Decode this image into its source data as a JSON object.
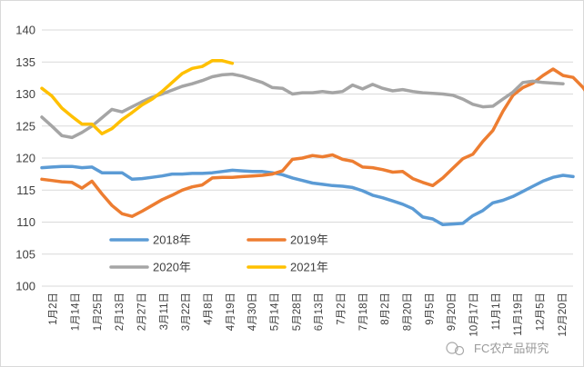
{
  "chart_data": {
    "type": "line",
    "title": "",
    "xlabel": "",
    "ylabel": "",
    "ylim": [
      100,
      140
    ],
    "yticks": [
      100,
      105,
      110,
      115,
      120,
      125,
      130,
      135,
      140
    ],
    "grid": "horizontal",
    "legend_placement": "bottom-left inside",
    "x_labels": [
      "1月2日",
      "1月14日",
      "1月25日",
      "2月13日",
      "2月27日",
      "3月11日",
      "3月22日",
      "4月8日",
      "4月19日",
      "4月30日",
      "5月14日",
      "5月28日",
      "6月13日",
      "7月2日",
      "7月18日",
      "8月2日",
      "8月20日",
      "9月5日",
      "9月20日",
      "10月17日",
      "11月1日",
      "11月19日",
      "12月5日",
      "12月20日"
    ],
    "series": [
      {
        "name": "2018年",
        "color": "#5B9BD5",
        "values": [
          118.5,
          118.6,
          118.7,
          118.7,
          118.5,
          118.6,
          117.7,
          117.7,
          117.7,
          116.7,
          116.8,
          117.0,
          117.2,
          117.5,
          117.5,
          117.6,
          117.6,
          117.7,
          117.9,
          118.1,
          118.0,
          117.9,
          117.9,
          117.7,
          117.4,
          116.9,
          116.5,
          116.1,
          115.9,
          115.7,
          115.6,
          115.4,
          114.9,
          114.2,
          113.8,
          113.3,
          112.8,
          112.1,
          110.8,
          110.5,
          109.6,
          109.7,
          109.8,
          111.0,
          111.8,
          113.0,
          113.4,
          114.0,
          114.8,
          115.6,
          116.4,
          117.0,
          117.3,
          117.1
        ]
      },
      {
        "name": "2019年",
        "color": "#ED7D31",
        "values": [
          116.7,
          116.5,
          116.3,
          116.2,
          115.3,
          116.4,
          114.4,
          112.6,
          111.3,
          110.9,
          111.7,
          112.6,
          113.5,
          114.2,
          115.0,
          115.5,
          115.8,
          116.9,
          117.0,
          117.0,
          117.1,
          117.2,
          117.3,
          117.5,
          118.0,
          119.8,
          120.0,
          120.4,
          120.2,
          120.5,
          119.8,
          119.5,
          118.6,
          118.5,
          118.2,
          117.8,
          117.9,
          116.8,
          116.2,
          115.7,
          116.9,
          118.4,
          119.9,
          120.6,
          122.6,
          124.3,
          127.3,
          129.8,
          131.0,
          131.7,
          132.9,
          133.9,
          132.9,
          132.6,
          131.0,
          128.9
        ]
      },
      {
        "name": "2020年",
        "color": "#A5A5A5",
        "values": [
          126.4,
          125.0,
          123.5,
          123.2,
          124.0,
          125.0,
          126.3,
          127.6,
          127.2,
          128.0,
          128.8,
          129.5,
          130.0,
          130.6,
          131.2,
          131.6,
          132.1,
          132.7,
          133.0,
          133.1,
          132.8,
          132.3,
          131.8,
          131.0,
          130.9,
          130.0,
          130.2,
          130.2,
          130.4,
          130.2,
          130.4,
          131.4,
          130.8,
          131.5,
          130.9,
          130.5,
          130.7,
          130.4,
          130.2,
          130.1,
          130.0,
          129.8,
          129.2,
          128.4,
          128.0,
          128.1,
          129.2,
          130.3,
          131.8,
          132.0,
          131.8,
          131.7,
          131.6
        ]
      },
      {
        "name": "2021年",
        "color": "#FFC000",
        "values": [
          130.9,
          129.7,
          127.8,
          126.5,
          125.3,
          125.3,
          123.8,
          124.6,
          126.0,
          127.1,
          128.3,
          129.2,
          130.4,
          131.8,
          133.2,
          134.0,
          134.3,
          135.2,
          135.2,
          134.8
        ]
      }
    ]
  },
  "watermark": "FC农产品研究"
}
